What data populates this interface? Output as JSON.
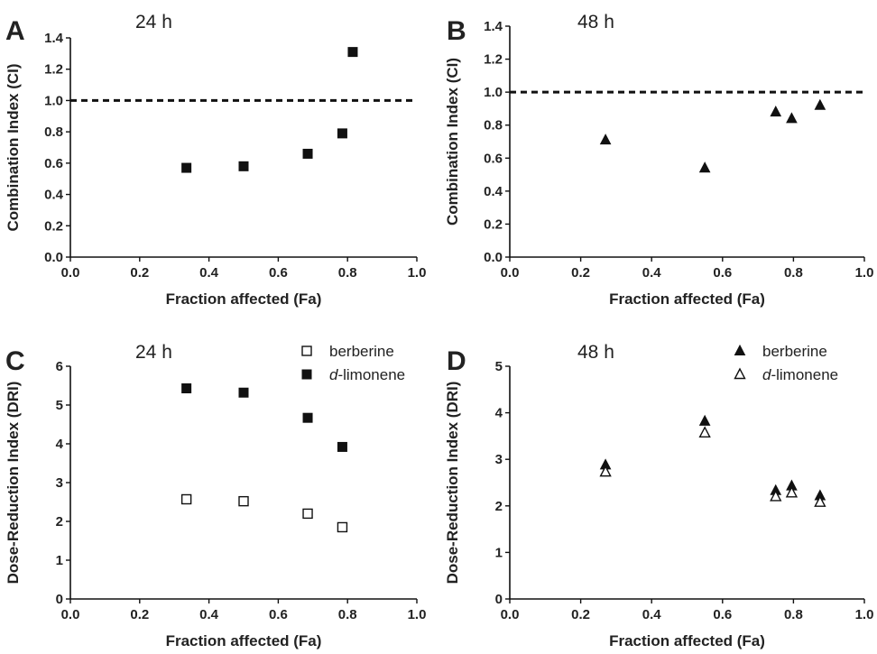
{
  "chart_data": [
    {
      "panel": "A",
      "type": "scatter",
      "annotation": "24 h",
      "xlabel": "Fraction affected (Fa)",
      "ylabel": "Combination Index (CI)",
      "xlim": [
        0,
        1.0
      ],
      "ylim": [
        0,
        1.4
      ],
      "x_ticks": [
        "0.0",
        "0.2",
        "0.4",
        "0.6",
        "0.8",
        "1.0"
      ],
      "y_ticks": [
        "0.0",
        "0.2",
        "0.4",
        "0.6",
        "0.8",
        "1.0",
        "1.2",
        "1.4"
      ],
      "reference_line": 1.0,
      "series": [
        {
          "marker": "square-filled",
          "x": [
            0.335,
            0.5,
            0.685,
            0.785,
            0.815
          ],
          "y": [
            0.57,
            0.58,
            0.66,
            0.79,
            1.31
          ]
        }
      ]
    },
    {
      "panel": "B",
      "type": "scatter",
      "annotation": "48 h",
      "xlabel": "Fraction affected (Fa)",
      "ylabel": "Combination Index (CI)",
      "xlim": [
        0,
        1.0
      ],
      "ylim": [
        0,
        1.4
      ],
      "x_ticks": [
        "0.0",
        "0.2",
        "0.4",
        "0.6",
        "0.8",
        "1.0"
      ],
      "y_ticks": [
        "0.0",
        "0.2",
        "0.4",
        "0.6",
        "0.8",
        "1.0",
        "1.2",
        "1.4"
      ],
      "reference_line": 1.0,
      "series": [
        {
          "marker": "triangle-filled",
          "x": [
            0.27,
            0.55,
            0.75,
            0.795,
            0.875
          ],
          "y": [
            0.71,
            0.54,
            0.88,
            0.84,
            0.92
          ]
        }
      ]
    },
    {
      "panel": "C",
      "type": "scatter",
      "annotation": "24 h",
      "xlabel": "Fraction affected (Fa)",
      "ylabel": "Dose-Reduction Index (DRI)",
      "xlim": [
        0,
        1.0
      ],
      "ylim": [
        0,
        6
      ],
      "x_ticks": [
        "0.0",
        "0.2",
        "0.4",
        "0.6",
        "0.8",
        "1.0"
      ],
      "y_ticks": [
        "0",
        "1",
        "2",
        "3",
        "4",
        "5",
        "6"
      ],
      "legend_placement": "top-right",
      "series": [
        {
          "name": "berberine",
          "marker": "square-open",
          "x": [
            0.335,
            0.5,
            0.685,
            0.785
          ],
          "y": [
            2.57,
            2.52,
            2.2,
            1.85
          ]
        },
        {
          "name_italic": "d",
          "name": "-limonene",
          "marker": "square-filled",
          "x": [
            0.335,
            0.5,
            0.685,
            0.785
          ],
          "y": [
            5.43,
            5.32,
            4.67,
            3.92
          ]
        }
      ]
    },
    {
      "panel": "D",
      "type": "scatter",
      "annotation": "48 h",
      "xlabel": "Fraction affected (Fa)",
      "ylabel": "Dose-Reduction Index (DRI)",
      "xlim": [
        0,
        1.0
      ],
      "ylim": [
        0,
        5
      ],
      "x_ticks": [
        "0.0",
        "0.2",
        "0.4",
        "0.6",
        "0.8",
        "1.0"
      ],
      "y_ticks": [
        "0",
        "1",
        "2",
        "3",
        "4",
        "5"
      ],
      "legend_placement": "top-right",
      "series": [
        {
          "name": "berberine",
          "marker": "triangle-filled",
          "x": [
            0.27,
            0.55,
            0.75,
            0.795,
            0.875
          ],
          "y": [
            2.88,
            3.82,
            2.33,
            2.43,
            2.22
          ]
        },
        {
          "name_italic": "d",
          "name": "-limonene",
          "marker": "triangle-open",
          "x": [
            0.27,
            0.55,
            0.75,
            0.795,
            0.875
          ],
          "y": [
            2.73,
            3.57,
            2.2,
            2.28,
            2.08
          ]
        }
      ]
    }
  ]
}
